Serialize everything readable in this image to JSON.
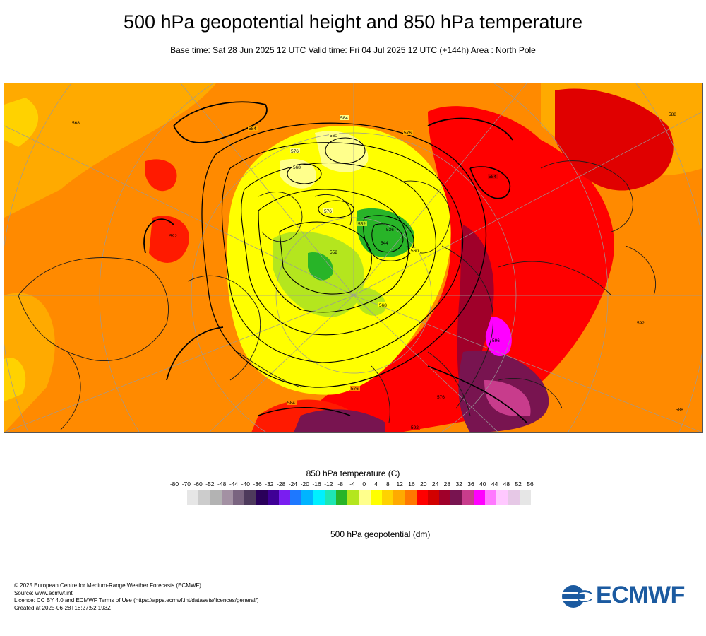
{
  "header": {
    "title": "500 hPa geopotential height and 850 hPa temperature",
    "subtitle": "Base time: Sat 28 Jun 2025 12 UTC Valid time: Fri 04 Jul 2025 12 UTC (+144h) Area : North Pole"
  },
  "map": {
    "contour_labels": [
      {
        "text": "584"
      },
      {
        "text": "576"
      },
      {
        "text": "568"
      },
      {
        "text": "560"
      },
      {
        "text": "576"
      },
      {
        "text": "552"
      },
      {
        "text": "544"
      },
      {
        "text": "536"
      },
      {
        "text": "552"
      },
      {
        "text": "560"
      },
      {
        "text": "568"
      },
      {
        "text": "576"
      },
      {
        "text": "584"
      },
      {
        "text": "592"
      },
      {
        "text": "584"
      },
      {
        "text": "576"
      },
      {
        "text": "592"
      },
      {
        "text": "584"
      },
      {
        "text": "568"
      },
      {
        "text": "576"
      },
      {
        "text": "588"
      },
      {
        "text": "592"
      },
      {
        "text": "596"
      },
      {
        "text": "588"
      }
    ]
  },
  "legend": {
    "title": "850 hPa temperature (C)",
    "ticks": [
      "-80",
      "-70",
      "-60",
      "-52",
      "-48",
      "-44",
      "-40",
      "-36",
      "-32",
      "-28",
      "-24",
      "-20",
      "-16",
      "-12",
      "-8",
      "-4",
      "0",
      "4",
      "8",
      "12",
      "16",
      "20",
      "24",
      "28",
      "32",
      "36",
      "40",
      "44",
      "48",
      "52",
      "56"
    ],
    "colors": [
      "#e6e6e6",
      "#cccccc",
      "#b3b3b3",
      "#a391a3",
      "#7a6480",
      "#4e3a5c",
      "#2a005a",
      "#3f0096",
      "#7a1ef0",
      "#1e78ff",
      "#00b4ff",
      "#00f0ff",
      "#1ee6b4",
      "#28b428",
      "#b4e61e",
      "#ffff8c",
      "#ffff00",
      "#ffd200",
      "#ffaa00",
      "#ff7800",
      "#ff0000",
      "#d20000",
      "#a0002a",
      "#781450",
      "#c83c8c",
      "#ff00ff",
      "#ff78ff",
      "#ffc8ff",
      "#e6c8e6",
      "#e6e6e6"
    ],
    "contour_label": "500 hPa geopotential (dm)"
  },
  "footer": {
    "lines": [
      "© 2025 European Centre for Medium-Range Weather Forecasts (ECMWF)",
      "Source: www.ecmwf.int",
      "Licence: CC BY 4.0 and ECMWF Terms of Use (https://apps.ecmwf.int/datasets/licences/general/)",
      "Created at 2025-06-28T18:27:52.193Z"
    ]
  },
  "logo": {
    "text": "ECMWF",
    "color": "#1b5aa0"
  }
}
